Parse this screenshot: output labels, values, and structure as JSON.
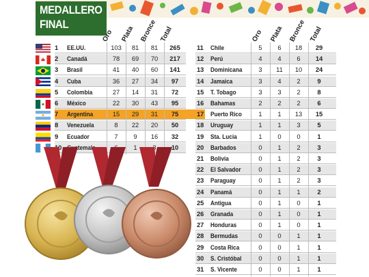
{
  "title": {
    "line1": "MEDALLERO",
    "line2": "FINAL"
  },
  "headers": {
    "gold": "Oro",
    "silver": "Plata",
    "bronze": "Bronce",
    "total": "Total"
  },
  "left_rows": [
    {
      "rank": "1",
      "country": "EE.UU.",
      "gold": "103",
      "silver": "81",
      "bronze": "81",
      "total": "265"
    },
    {
      "rank": "2",
      "country": "Canadá",
      "gold": "78",
      "silver": "69",
      "bronze": "70",
      "total": "217"
    },
    {
      "rank": "3",
      "country": "Brasil",
      "gold": "41",
      "silver": "40",
      "bronze": "60",
      "total": "141"
    },
    {
      "rank": "4",
      "country": "Cuba",
      "gold": "36",
      "silver": "27",
      "bronze": "34",
      "total": "97"
    },
    {
      "rank": "5",
      "country": "Colombia",
      "gold": "27",
      "silver": "14",
      "bronze": "31",
      "total": "72"
    },
    {
      "rank": "6",
      "country": "México",
      "gold": "22",
      "silver": "30",
      "bronze": "43",
      "total": "95"
    },
    {
      "rank": "7",
      "country": "Argentina",
      "gold": "15",
      "silver": "29",
      "bronze": "31",
      "total": "75"
    },
    {
      "rank": "8",
      "country": "Venezuela",
      "gold": "8",
      "silver": "22",
      "bronze": "20",
      "total": "50"
    },
    {
      "rank": "9",
      "country": "Ecuador",
      "gold": "7",
      "silver": "9",
      "bronze": "16",
      "total": "32"
    },
    {
      "rank": "10",
      "country": "Guatemala",
      "gold": "6",
      "silver": "1",
      "bronze": "3",
      "total": "10"
    }
  ],
  "right_rows": [
    {
      "rank": "11",
      "country": "Chile",
      "gold": "5",
      "silver": "6",
      "bronze": "18",
      "total": "29"
    },
    {
      "rank": "12",
      "country": "Perú",
      "gold": "4",
      "silver": "4",
      "bronze": "6",
      "total": "14"
    },
    {
      "rank": "13",
      "country": "Dominicana",
      "gold": "3",
      "silver": "11",
      "bronze": "10",
      "total": "24"
    },
    {
      "rank": "14",
      "country": "Jamaica",
      "gold": "3",
      "silver": "4",
      "bronze": "2",
      "total": "9"
    },
    {
      "rank": "15",
      "country": "T. Tobago",
      "gold": "3",
      "silver": "3",
      "bronze": "2",
      "total": "8"
    },
    {
      "rank": "16",
      "country": "Bahamas",
      "gold": "2",
      "silver": "2",
      "bronze": "2",
      "total": "6"
    },
    {
      "rank": "17",
      "country": "Puerto Rico",
      "gold": "1",
      "silver": "1",
      "bronze": "13",
      "total": "15"
    },
    {
      "rank": "18",
      "country": "Uruguay",
      "gold": "1",
      "silver": "1",
      "bronze": "3",
      "total": "5"
    },
    {
      "rank": "19",
      "country": "Sta. Lucia",
      "gold": "1",
      "silver": "0",
      "bronze": "0",
      "total": "1"
    },
    {
      "rank": "20",
      "country": "Barbados",
      "gold": "0",
      "silver": "1",
      "bronze": "2",
      "total": "3"
    },
    {
      "rank": "21",
      "country": "Bolivia",
      "gold": "0",
      "silver": "1",
      "bronze": "2",
      "total": "3"
    },
    {
      "rank": "22",
      "country": "El Salvador",
      "gold": "0",
      "silver": "1",
      "bronze": "2",
      "total": "3"
    },
    {
      "rank": "23",
      "country": "Paraguay",
      "gold": "0",
      "silver": "1",
      "bronze": "2",
      "total": "3"
    },
    {
      "rank": "24",
      "country": "Panamá",
      "gold": "0",
      "silver": "1",
      "bronze": "1",
      "total": "2"
    },
    {
      "rank": "25",
      "country": "Antigua",
      "gold": "0",
      "silver": "1",
      "bronze": "0",
      "total": "1"
    },
    {
      "rank": "26",
      "country": "Granada",
      "gold": "0",
      "silver": "1",
      "bronze": "0",
      "total": "1"
    },
    {
      "rank": "27",
      "country": "Honduras",
      "gold": "0",
      "silver": "1",
      "bronze": "0",
      "total": "1"
    },
    {
      "rank": "28",
      "country": "Bermudas",
      "gold": "0",
      "silver": "0",
      "bronze": "1",
      "total": "1"
    },
    {
      "rank": "29",
      "country": "Costa Rica",
      "gold": "0",
      "silver": "0",
      "bronze": "1",
      "total": "1"
    },
    {
      "rank": "30",
      "country": "S. Cristóbal",
      "gold": "0",
      "silver": "0",
      "bronze": "1",
      "total": "1"
    },
    {
      "rank": "31",
      "country": "S. Vicente",
      "gold": "0",
      "silver": "0",
      "bronze": "1",
      "total": "1"
    }
  ],
  "highlight_row_index": 6,
  "colors": {
    "title_bg": "#2d6e2e",
    "highlight": "#f4a326",
    "stripe": "#e6e6e6",
    "ribbon": "#b02830",
    "gold": "#d8b552",
    "silver": "#c4c4c4",
    "bronze": "#c98a6a"
  },
  "medals": [
    {
      "name": "gold-medal-icon",
      "kind": "gold"
    },
    {
      "name": "silver-medal-icon",
      "kind": "silver"
    },
    {
      "name": "bronze-medal-icon",
      "kind": "bronze"
    }
  ]
}
